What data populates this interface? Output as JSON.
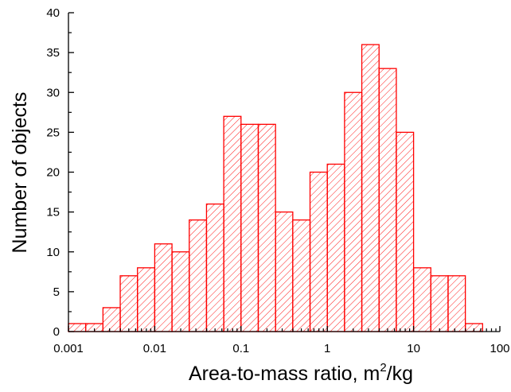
{
  "chart_data": {
    "type": "bar",
    "title": "",
    "xlabel_main": "Area-to-mass ratio, m",
    "xlabel_sup": "2",
    "xlabel_tail": "/kg",
    "ylabel": "Number of objects",
    "x_scale": "log",
    "xlim": [
      0.001,
      100
    ],
    "ylim": [
      0,
      40
    ],
    "x_ticks": [
      "0.001",
      "0.01",
      "0.1",
      "1",
      "10",
      "100"
    ],
    "y_ticks": [
      "0",
      "5",
      "10",
      "15",
      "20",
      "25",
      "30",
      "35",
      "40"
    ],
    "bin_log_width": 0.2,
    "bin_edges_start": 0.001,
    "values": [
      1,
      1,
      3,
      7,
      8,
      11,
      10,
      14,
      16,
      27,
      26,
      26,
      15,
      14,
      20,
      21,
      30,
      36,
      33,
      25,
      8,
      7,
      7,
      1
    ],
    "bar_color": "#ff0000",
    "hatch": "diagonal",
    "grid": false,
    "legend": "none"
  }
}
